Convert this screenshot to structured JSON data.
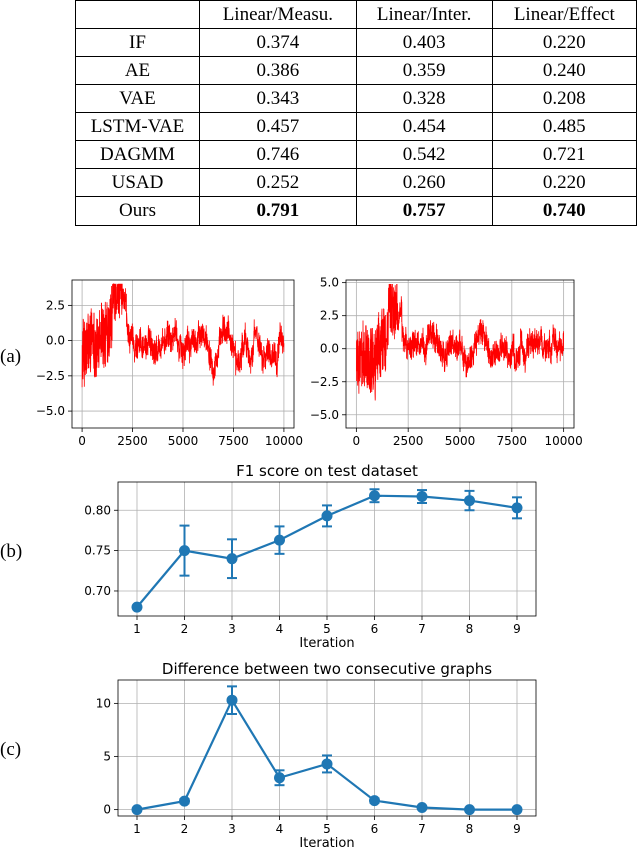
{
  "table": {
    "headers": [
      "",
      "Linear/Measu.",
      "Linear/Inter.",
      "Linear/Effect"
    ],
    "rows": [
      {
        "method": "IF",
        "values": [
          "0.374",
          "0.403",
          "0.220"
        ],
        "bold": false
      },
      {
        "method": "AE",
        "values": [
          "0.386",
          "0.359",
          "0.240"
        ],
        "bold": false
      },
      {
        "method": "VAE",
        "values": [
          "0.343",
          "0.328",
          "0.208"
        ],
        "bold": false
      },
      {
        "method": "LSTM-VAE",
        "values": [
          "0.457",
          "0.454",
          "0.485"
        ],
        "bold": false
      },
      {
        "method": "DAGMM",
        "values": [
          "0.746",
          "0.542",
          "0.721"
        ],
        "bold": false
      },
      {
        "method": "USAD",
        "values": [
          "0.252",
          "0.260",
          "0.220"
        ],
        "bold": false
      },
      {
        "method": "Ours",
        "values": [
          "0.791",
          "0.757",
          "0.740"
        ],
        "bold": true
      }
    ]
  },
  "panel_labels": {
    "a": "(a)",
    "b": "(b)",
    "c": "(c)"
  },
  "chart_data": [
    {
      "type": "line",
      "id": "a-left",
      "title": "",
      "series_color": "#ff0000",
      "xlim": [
        -500,
        10500
      ],
      "ylim": [
        -6.2,
        4.3
      ],
      "x_ticks": [
        0,
        2500,
        5000,
        7500,
        10000
      ],
      "y_ticks": [
        -5.0,
        -2.5,
        0.0,
        2.5
      ],
      "x_tick_labels": [
        "0",
        "2500",
        "5000",
        "7500",
        "10000"
      ],
      "y_tick_labels": [
        "−5.0",
        "−2.5",
        "0.0",
        "2.5"
      ],
      "grid": true
    },
    {
      "type": "line",
      "id": "a-right",
      "title": "",
      "series_color": "#ff0000",
      "xlim": [
        -500,
        10500
      ],
      "ylim": [
        -6.0,
        5.2
      ],
      "x_ticks": [
        0,
        2500,
        5000,
        7500,
        10000
      ],
      "y_ticks": [
        -5.0,
        -2.5,
        0.0,
        2.5,
        5.0
      ],
      "x_tick_labels": [
        "0",
        "2500",
        "5000",
        "7500",
        "10000"
      ],
      "y_tick_labels": [
        "−5.0",
        "−2.5",
        "0.0",
        "2.5",
        "5.0"
      ],
      "grid": true
    },
    {
      "type": "line",
      "id": "b",
      "title": "F1 score on test dataset",
      "xlabel": "Iteration",
      "series_color": "#1f77b4",
      "x": [
        1,
        2,
        3,
        4,
        5,
        6,
        7,
        8,
        9
      ],
      "y": [
        0.68,
        0.75,
        0.74,
        0.763,
        0.793,
        0.818,
        0.817,
        0.812,
        0.803
      ],
      "yerr": [
        0.0,
        0.031,
        0.024,
        0.017,
        0.013,
        0.008,
        0.008,
        0.012,
        0.013
      ],
      "xlim": [
        0.6,
        9.4
      ],
      "ylim": [
        0.669,
        0.835
      ],
      "x_ticks": [
        1,
        2,
        3,
        4,
        5,
        6,
        7,
        8,
        9
      ],
      "y_ticks": [
        0.7,
        0.75,
        0.8
      ],
      "x_tick_labels": [
        "1",
        "2",
        "3",
        "4",
        "5",
        "6",
        "7",
        "8",
        "9"
      ],
      "y_tick_labels": [
        "0.70",
        "0.75",
        "0.80"
      ],
      "grid": true
    },
    {
      "type": "line",
      "id": "c",
      "title": "Difference between two consecutive graphs",
      "xlabel": "Iteration",
      "series_color": "#1f77b4",
      "x": [
        1,
        2,
        3,
        4,
        5,
        6,
        7,
        8,
        9
      ],
      "y": [
        0.0,
        0.8,
        10.3,
        3.0,
        4.3,
        0.85,
        0.2,
        0.0,
        0.0
      ],
      "yerr": [
        0.0,
        0.2,
        1.3,
        0.7,
        0.8,
        0.2,
        0.15,
        0.05,
        0.05
      ],
      "xlim": [
        0.6,
        9.4
      ],
      "ylim": [
        -0.6,
        12.2
      ],
      "x_ticks": [
        1,
        2,
        3,
        4,
        5,
        6,
        7,
        8,
        9
      ],
      "y_ticks": [
        0,
        5,
        10
      ],
      "x_tick_labels": [
        "1",
        "2",
        "3",
        "4",
        "5",
        "6",
        "7",
        "8",
        "9"
      ],
      "y_tick_labels": [
        "0",
        "5",
        "10"
      ],
      "grid": true
    }
  ]
}
